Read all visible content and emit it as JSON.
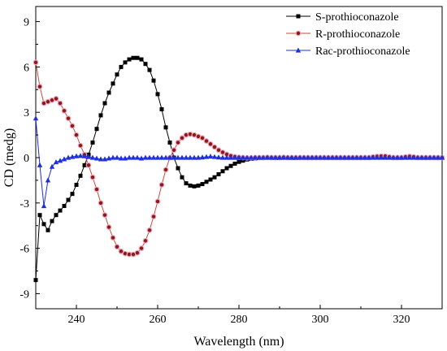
{
  "chart_data": {
    "type": "line",
    "xlabel": "Wavelength (nm)",
    "ylabel": "CD (medg)",
    "xlim": [
      230,
      330
    ],
    "ylim": [
      -10,
      10
    ],
    "xticks": [
      240,
      260,
      280,
      300,
      320
    ],
    "yticks": [
      -9,
      -6,
      -3,
      0,
      3,
      6,
      9
    ],
    "grid": false,
    "legend_position": "top-right",
    "series": [
      {
        "name": "S-prothioconazole",
        "color": "#000000",
        "marker": "square",
        "x": [
          230,
          231,
          232,
          233,
          234,
          235,
          236,
          237,
          238,
          239,
          240,
          241,
          242,
          243,
          244,
          245,
          246,
          247,
          248,
          249,
          250,
          251,
          252,
          253,
          254,
          255,
          256,
          257,
          258,
          259,
          260,
          261,
          262,
          263,
          264,
          265,
          266,
          267,
          268,
          269,
          270,
          271,
          272,
          273,
          274,
          275,
          276,
          277,
          278,
          279,
          280,
          281,
          282,
          283,
          284,
          285,
          286,
          287,
          288,
          289,
          290,
          291,
          292,
          293,
          294,
          295,
          296,
          297,
          298,
          299,
          300,
          301,
          302,
          303,
          304,
          305,
          306,
          307,
          308,
          309,
          310,
          311,
          312,
          313,
          314,
          315,
          316,
          317,
          318,
          319,
          320,
          321,
          322,
          323,
          324,
          325,
          326,
          327,
          328,
          329,
          330
        ],
        "y": [
          -8.1,
          -3.8,
          -4.4,
          -4.8,
          -4.2,
          -3.8,
          -3.5,
          -3.2,
          -2.8,
          -2.4,
          -1.8,
          -1.2,
          -0.5,
          0.2,
          1.0,
          1.9,
          2.8,
          3.6,
          4.3,
          4.9,
          5.5,
          6.0,
          6.3,
          6.5,
          6.6,
          6.6,
          6.5,
          6.2,
          5.8,
          5.1,
          4.2,
          3.2,
          2.0,
          1.0,
          0.0,
          -0.7,
          -1.3,
          -1.7,
          -1.85,
          -1.9,
          -1.85,
          -1.75,
          -1.6,
          -1.45,
          -1.3,
          -1.1,
          -0.9,
          -0.7,
          -0.55,
          -0.4,
          -0.28,
          -0.2,
          -0.12,
          -0.08,
          -0.05,
          -0.02,
          0.0,
          0.0,
          0.0,
          -0.02,
          -0.02,
          0.0,
          0.0,
          -0.02,
          -0.02,
          0.0,
          0.0,
          0.0,
          0.0,
          0.0,
          0.0,
          0.0,
          0.0,
          0.0,
          0.0,
          0.0,
          0.0,
          0.0,
          0.0,
          0.0,
          0.0,
          0.0,
          0.0,
          0.0,
          0.0,
          0.0,
          0.0,
          0.0,
          0.0,
          0.0,
          0.0,
          0.0,
          0.0,
          0.0,
          0.0,
          0.0,
          0.0,
          0.0,
          0.0,
          0.0,
          0.0
        ]
      },
      {
        "name": "R-prothioconazole",
        "color": "#8b1a10",
        "line_color": "#cc4a3e",
        "marker": "circle",
        "x": [
          230,
          231,
          232,
          233,
          234,
          235,
          236,
          237,
          238,
          239,
          240,
          241,
          242,
          243,
          244,
          245,
          246,
          247,
          248,
          249,
          250,
          251,
          252,
          253,
          254,
          255,
          256,
          257,
          258,
          259,
          260,
          261,
          262,
          263,
          264,
          265,
          266,
          267,
          268,
          269,
          270,
          271,
          272,
          273,
          274,
          275,
          276,
          277,
          278,
          279,
          280,
          281,
          282,
          283,
          284,
          285,
          286,
          287,
          288,
          289,
          290,
          291,
          292,
          293,
          294,
          295,
          296,
          297,
          298,
          299,
          300,
          301,
          302,
          303,
          304,
          305,
          306,
          307,
          308,
          309,
          310,
          311,
          312,
          313,
          314,
          315,
          316,
          317,
          318,
          319,
          320,
          321,
          322,
          323,
          324,
          325,
          326,
          327,
          328,
          329,
          330
        ],
        "y": [
          6.3,
          4.7,
          3.6,
          3.7,
          3.8,
          3.9,
          3.6,
          3.1,
          2.6,
          2.1,
          1.5,
          0.8,
          0.2,
          -0.5,
          -1.3,
          -2.1,
          -3.0,
          -3.8,
          -4.6,
          -5.3,
          -5.9,
          -6.2,
          -6.35,
          -6.4,
          -6.4,
          -6.3,
          -6.0,
          -5.5,
          -4.8,
          -3.9,
          -2.9,
          -1.8,
          -0.8,
          0.0,
          0.5,
          1.0,
          1.3,
          1.5,
          1.55,
          1.5,
          1.4,
          1.3,
          1.1,
          0.9,
          0.7,
          0.5,
          0.35,
          0.22,
          0.12,
          0.06,
          0.02,
          0.0,
          -0.02,
          -0.02,
          0.0,
          0.0,
          0.0,
          0.02,
          0.0,
          0.0,
          0.0,
          0.02,
          0.0,
          0.0,
          0.0,
          0.0,
          0.0,
          0.0,
          0.0,
          0.0,
          0.0,
          0.0,
          0.0,
          0.0,
          0.0,
          0.0,
          0.0,
          0.0,
          0.0,
          0.0,
          0.0,
          0.0,
          0.0,
          0.05,
          0.08,
          0.1,
          0.1,
          0.05,
          0.0,
          0.0,
          0.0,
          0.05,
          0.08,
          0.05,
          0.0,
          0.0,
          0.0,
          0.0,
          0.0,
          0.0,
          0.0
        ]
      },
      {
        "name": "Rac-prothioconazole",
        "color": "#1f2fe0",
        "marker": "triangle",
        "x": [
          230,
          231,
          232,
          233,
          234,
          235,
          236,
          237,
          238,
          239,
          240,
          241,
          242,
          243,
          244,
          245,
          246,
          247,
          248,
          249,
          250,
          251,
          252,
          253,
          254,
          255,
          256,
          257,
          258,
          259,
          260,
          261,
          262,
          263,
          264,
          265,
          266,
          267,
          268,
          269,
          270,
          271,
          272,
          273,
          274,
          275,
          276,
          277,
          278,
          279,
          280,
          281,
          282,
          283,
          284,
          285,
          286,
          287,
          288,
          289,
          290,
          291,
          292,
          293,
          294,
          295,
          296,
          297,
          298,
          299,
          300,
          301,
          302,
          303,
          304,
          305,
          306,
          307,
          308,
          309,
          310,
          311,
          312,
          313,
          314,
          315,
          316,
          317,
          318,
          319,
          320,
          321,
          322,
          323,
          324,
          325,
          326,
          327,
          328,
          329,
          330
        ],
        "y": [
          2.6,
          -0.5,
          -3.2,
          -1.5,
          -0.6,
          -0.3,
          -0.2,
          -0.1,
          0.0,
          0.05,
          0.1,
          0.12,
          0.1,
          0.05,
          0.0,
          -0.05,
          -0.1,
          -0.1,
          -0.05,
          0.0,
          0.0,
          -0.05,
          -0.05,
          0.0,
          0.0,
          0.0,
          -0.05,
          0.0,
          0.0,
          0.0,
          0.0,
          0.0,
          0.0,
          0.0,
          0.0,
          0.0,
          0.0,
          0.0,
          0.0,
          0.0,
          0.0,
          0.02,
          0.05,
          0.08,
          0.05,
          0.02,
          0.0,
          0.0,
          0.0,
          0.0,
          0.0,
          0.0,
          0.0,
          0.0,
          0.0,
          0.0,
          0.0,
          0.0,
          0.0,
          0.0,
          0.0,
          0.0,
          0.0,
          0.0,
          0.0,
          0.0,
          0.0,
          0.0,
          0.0,
          0.0,
          0.0,
          0.0,
          0.0,
          0.0,
          0.0,
          0.0,
          0.0,
          0.0,
          0.0,
          0.0,
          0.0,
          0.0,
          0.0,
          0.0,
          0.0,
          0.0,
          0.0,
          0.0,
          0.0,
          0.0,
          0.0,
          0.0,
          0.0,
          0.0,
          0.0,
          0.0,
          0.0,
          0.0,
          0.0,
          0.0,
          0.0
        ]
      }
    ]
  }
}
